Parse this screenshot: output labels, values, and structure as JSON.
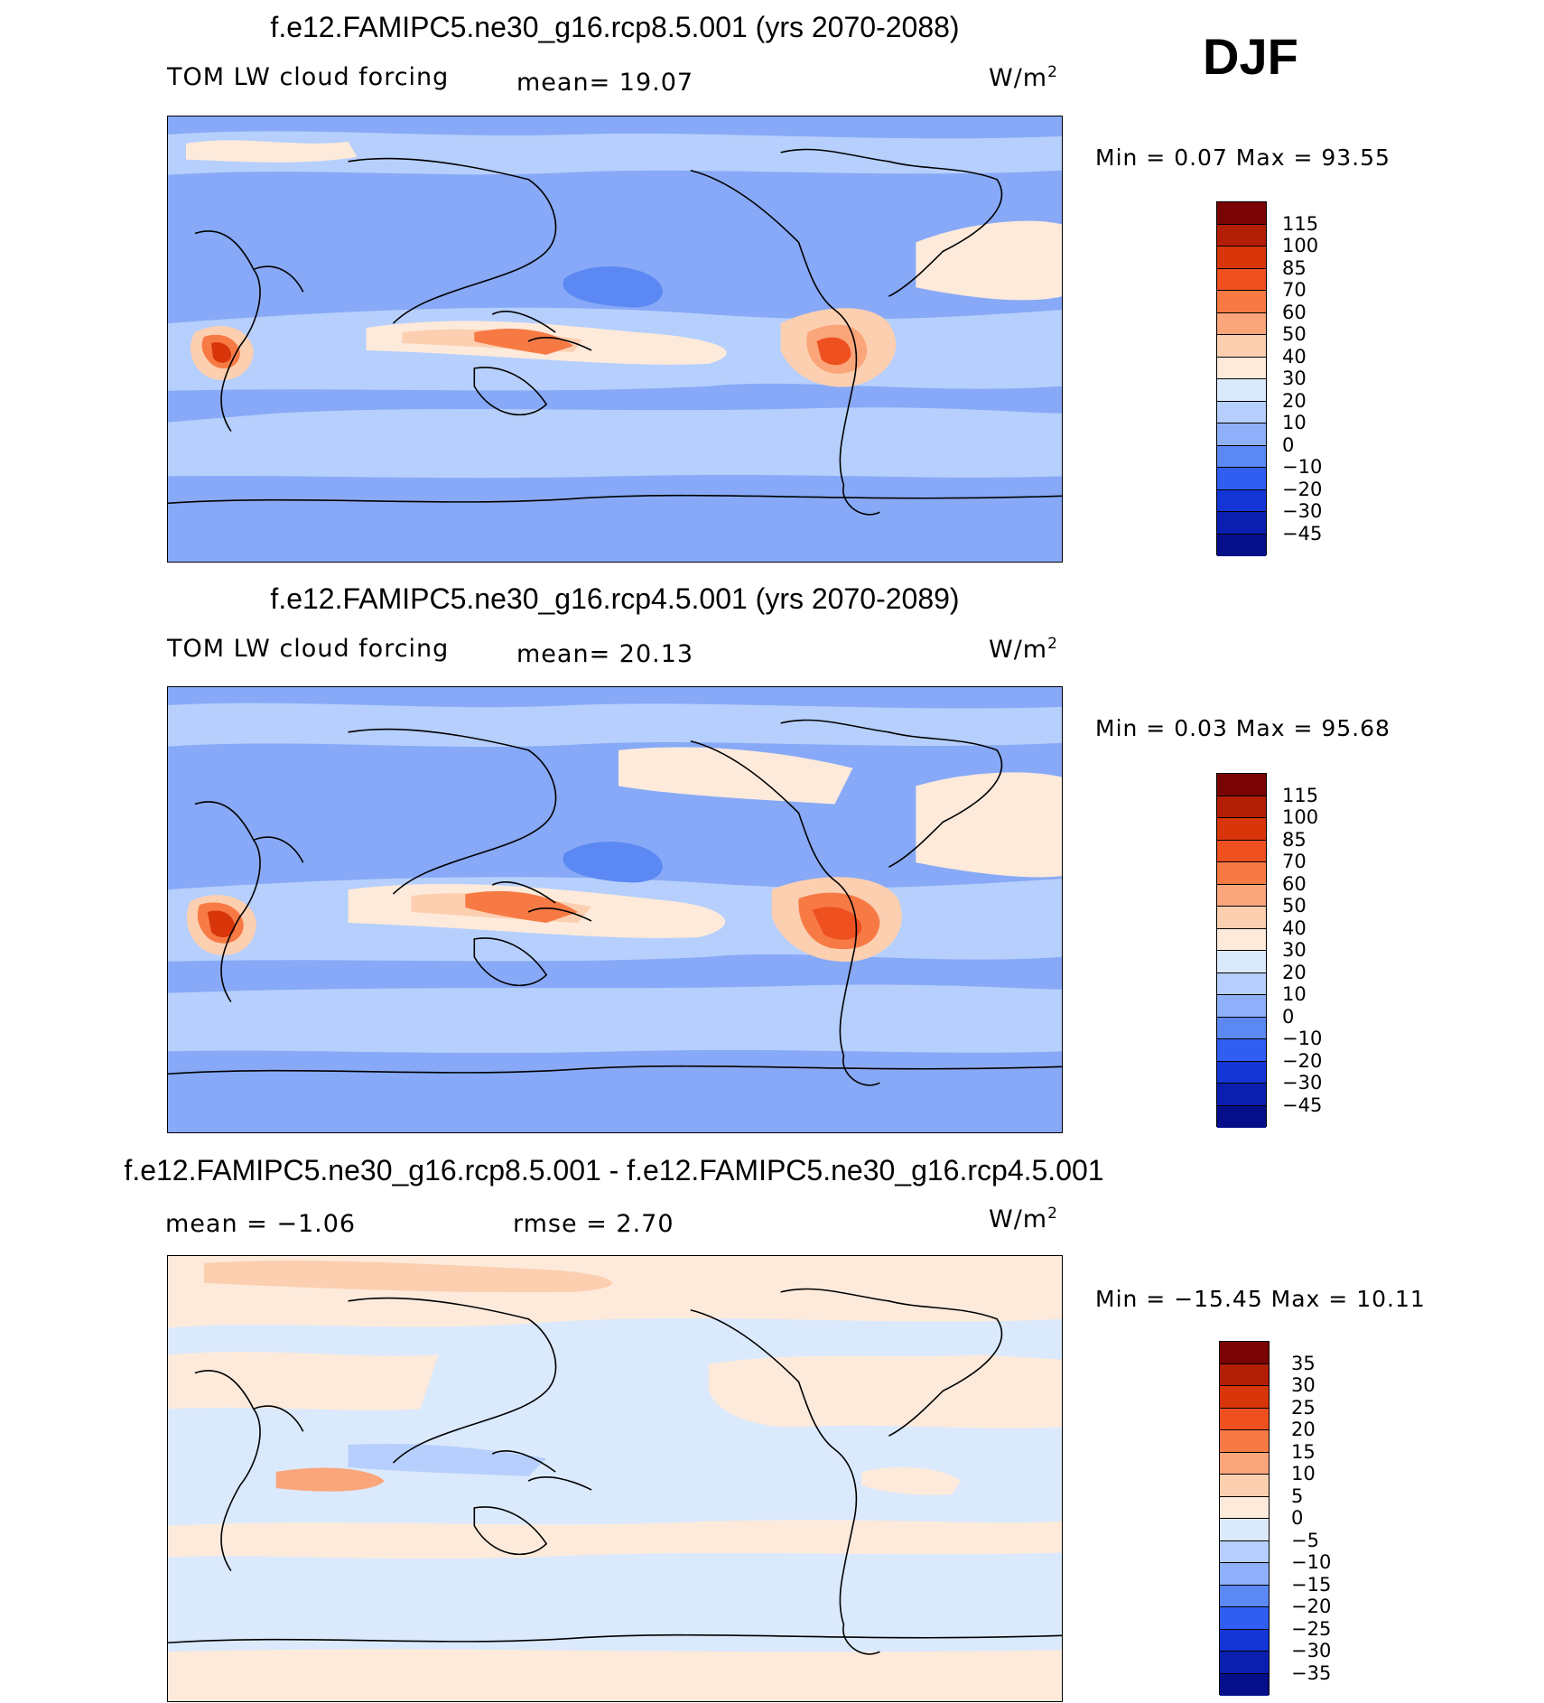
{
  "season": "DJF",
  "panels": [
    {
      "title": "f.e12.FAMIPC5.ne30_g16.rcp8.5.001 (yrs 2070-2088)",
      "left_label": "TOM LW cloud forcing",
      "center_label": "mean=   19.07",
      "unit": "W/m",
      "unit_sup": "2",
      "minmax": "Min =    0.07 Max =   93.55",
      "colorbar": {
        "ticks": [
          "115",
          "100",
          "85",
          "70",
          "60",
          "50",
          "40",
          "30",
          "20",
          "10",
          "0",
          "−10",
          "−20",
          "−30",
          "−45"
        ],
        "colors": [
          "#7a0403",
          "#b31e06",
          "#d8360a",
          "#ee5020",
          "#f77a45",
          "#fba57a",
          "#fccfb0",
          "#fdeadb",
          "#dbe9fc",
          "#b6cffc",
          "#8faffa",
          "#5b88f2",
          "#2f5ef0",
          "#1436d6",
          "#0a1fb0",
          "#050f8a"
        ]
      }
    },
    {
      "title": "f.e12.FAMIPC5.ne30_g16.rcp4.5.001 (yrs 2070-2089)",
      "left_label": "TOM LW cloud forcing",
      "center_label": "mean=   20.13",
      "unit": "W/m",
      "unit_sup": "2",
      "minmax": "Min =    0.03 Max =   95.68",
      "colorbar": {
        "ticks": [
          "115",
          "100",
          "85",
          "70",
          "60",
          "50",
          "40",
          "30",
          "20",
          "10",
          "0",
          "−10",
          "−20",
          "−30",
          "−45"
        ],
        "colors": [
          "#7a0403",
          "#b31e06",
          "#d8360a",
          "#ee5020",
          "#f77a45",
          "#fba57a",
          "#fccfb0",
          "#fdeadb",
          "#dbe9fc",
          "#b6cffc",
          "#8faffa",
          "#5b88f2",
          "#2f5ef0",
          "#1436d6",
          "#0a1fb0",
          "#050f8a"
        ]
      }
    },
    {
      "title": "f.e12.FAMIPC5.ne30_g16.rcp8.5.001 - f.e12.FAMIPC5.ne30_g16.rcp4.5.001",
      "left_label": "mean =   −1.06",
      "center_label": "rmse =    2.70",
      "unit": "W/m",
      "unit_sup": "2",
      "minmax": "Min = −15.45 Max =   10.11",
      "colorbar": {
        "ticks": [
          "35",
          "30",
          "25",
          "20",
          "15",
          "10",
          "5",
          "0",
          "−5",
          "−10",
          "−15",
          "−20",
          "−25",
          "−30",
          "−35"
        ],
        "colors": [
          "#7a0403",
          "#b31e06",
          "#d8360a",
          "#ee5020",
          "#f77a45",
          "#fba57a",
          "#fccfb0",
          "#fdeadb",
          "#dbe9fc",
          "#b6cffc",
          "#8faffa",
          "#5b88f2",
          "#2f5ef0",
          "#1436d6",
          "#0a1fb0",
          "#050f8a"
        ]
      }
    }
  ]
}
